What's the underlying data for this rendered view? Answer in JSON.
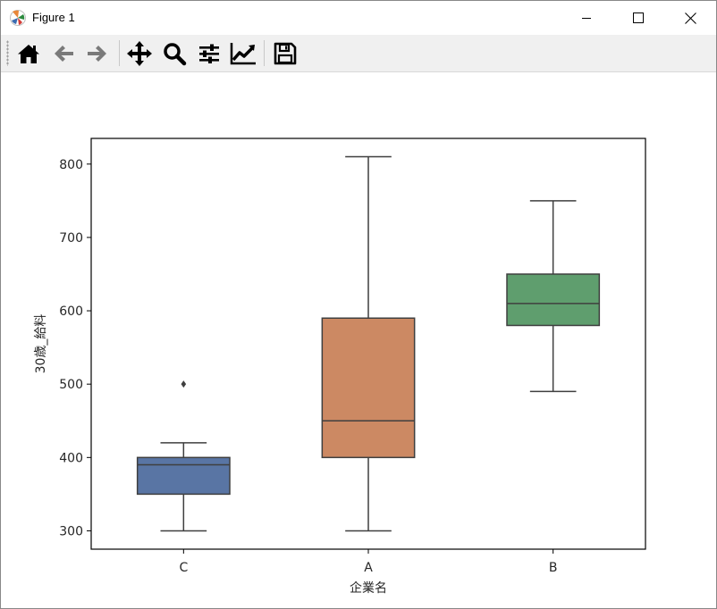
{
  "window": {
    "title": "Figure 1",
    "controls": [
      "minimize",
      "maximize",
      "close"
    ]
  },
  "toolbar": {
    "buttons": [
      "home-icon",
      "back-icon",
      "forward-icon",
      "pan-icon",
      "zoom-icon",
      "configure-subplots-icon",
      "edit-axis-icon",
      "save-icon"
    ]
  },
  "chart_data": {
    "type": "box",
    "xlabel": "企業名",
    "ylabel": "30歳_給料",
    "ylim": [
      275,
      835
    ],
    "yticks": [
      300,
      400,
      500,
      600,
      700,
      800
    ],
    "grid": false,
    "categories": [
      "C",
      "A",
      "B"
    ],
    "boxes": [
      {
        "category": "C",
        "whisker_low": 300,
        "q1": 350,
        "median": 390,
        "q3": 400,
        "whisker_high": 420,
        "outliers": [
          500
        ],
        "color": "#5975a4"
      },
      {
        "category": "A",
        "whisker_low": 300,
        "q1": 400,
        "median": 450,
        "q3": 590,
        "whisker_high": 810,
        "outliers": [],
        "color": "#cc8963"
      },
      {
        "category": "B",
        "whisker_low": 490,
        "q1": 580,
        "median": 610,
        "q3": 650,
        "whisker_high": 750,
        "outliers": [],
        "color": "#5f9e6e"
      }
    ]
  }
}
